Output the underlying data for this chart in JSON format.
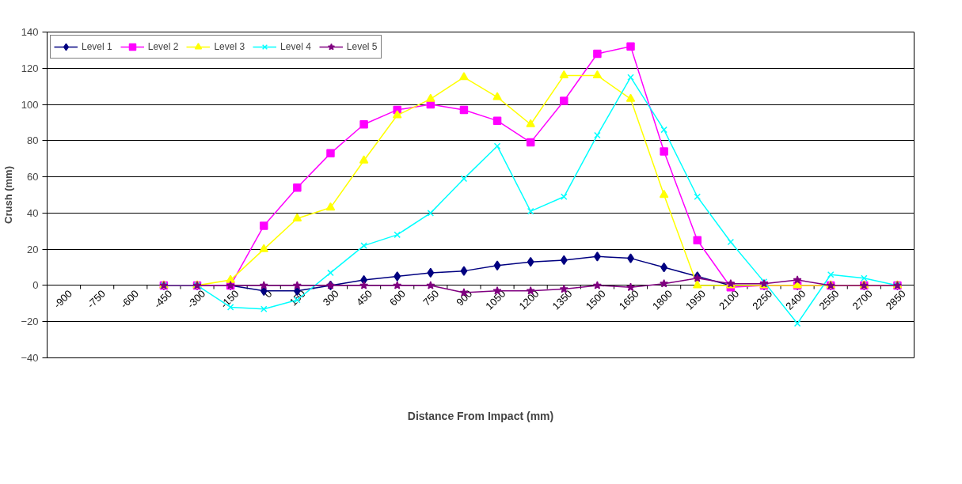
{
  "chart_data": {
    "type": "line",
    "xlabel": "Distance From Impact (mm)",
    "ylabel": "Crush (mm)",
    "categories": [
      "-900",
      "-750",
      "-600",
      "-450",
      "-300",
      "-150",
      "0",
      "150",
      "300",
      "450",
      "600",
      "750",
      "900",
      "1050",
      "1200",
      "1350",
      "1500",
      "1650",
      "1800",
      "1950",
      "2100",
      "2250",
      "2400",
      "2550",
      "2700",
      "2850"
    ],
    "ylim": [
      -40,
      140
    ],
    "yticks": [
      -40,
      -20,
      0,
      20,
      40,
      60,
      80,
      100,
      120,
      140
    ],
    "grid": "y",
    "legend": "top",
    "series": [
      {
        "name": "Level 1",
        "color": "#000080",
        "marker": "diamond",
        "values": [
          null,
          null,
          null,
          0,
          0,
          0,
          -3,
          -3,
          0,
          3,
          5,
          7,
          8,
          11,
          13,
          14,
          16,
          15,
          10,
          5,
          0,
          0,
          0,
          0,
          0,
          0
        ]
      },
      {
        "name": "Level 2",
        "color": "#ff00ff",
        "marker": "square",
        "values": [
          null,
          null,
          null,
          0,
          0,
          0,
          33,
          54,
          73,
          89,
          97,
          100,
          97,
          91,
          79,
          102,
          128,
          132,
          74,
          25,
          -1,
          0,
          0,
          0,
          0,
          0
        ]
      },
      {
        "name": "Level 3",
        "color": "#ffff00",
        "marker": "triangle",
        "values": [
          null,
          null,
          null,
          0,
          0,
          3,
          20,
          37,
          43,
          69,
          94,
          103,
          115,
          104,
          89,
          116,
          116,
          103,
          50,
          0,
          0,
          0,
          0,
          0,
          0,
          0
        ]
      },
      {
        "name": "Level 4",
        "color": "#00ffff",
        "marker": "cross",
        "values": [
          null,
          null,
          null,
          0,
          0,
          -12,
          -13,
          -8,
          7,
          22,
          28,
          40,
          59,
          77,
          41,
          49,
          83,
          115,
          86,
          49,
          24,
          2,
          -21,
          6,
          4,
          0
        ]
      },
      {
        "name": "Level 5",
        "color": "#800080",
        "marker": "star",
        "values": [
          null,
          null,
          null,
          0,
          0,
          0,
          0,
          0,
          0,
          0,
          0,
          0,
          -4,
          -3,
          -3,
          -2,
          0,
          -1,
          1,
          4,
          1,
          1,
          3,
          0,
          0,
          0
        ]
      }
    ]
  }
}
